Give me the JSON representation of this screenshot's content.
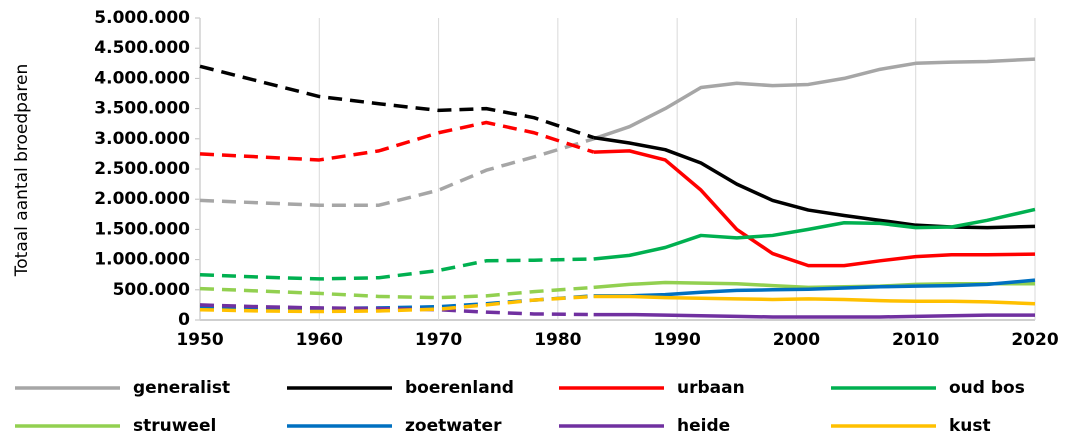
{
  "chart_data": {
    "type": "line",
    "ylabel": "Totaal aantal broedparen",
    "x": [
      1950,
      1955,
      1960,
      1965,
      1970,
      1974,
      1978,
      1983,
      1986,
      1989,
      1992,
      1995,
      1998,
      2001,
      2004,
      2007,
      2010,
      2013,
      2016,
      2020
    ],
    "dashed_until": 1983,
    "xlim": [
      1950,
      2020
    ],
    "xticks": [
      1950,
      1960,
      1970,
      1980,
      1990,
      2000,
      2010,
      2020
    ],
    "ylim": [
      0,
      5000000
    ],
    "yticks": [
      0,
      {
        "value": 500000,
        "label": "500.000"
      },
      {
        "value": 1000000,
        "label": "1.000.000"
      },
      {
        "value": 1500000,
        "label": "1.500.000"
      },
      {
        "value": 2000000,
        "label": "2.000.000"
      },
      {
        "value": 2500000,
        "label": "2.500.000"
      },
      {
        "value": 3000000,
        "label": "3.000.000"
      },
      {
        "value": 3500000,
        "label": "3.500.000"
      },
      {
        "value": 4000000,
        "label": "4.000.000"
      },
      {
        "value": 4500000,
        "label": "4.500.000"
      },
      {
        "value": 5000000,
        "label": "5.000.000"
      }
    ],
    "series": [
      {
        "name": "generalist",
        "color": "#a6a6a6",
        "values": [
          1980000,
          1940000,
          1900000,
          1900000,
          2150000,
          2480000,
          2700000,
          3000000,
          3200000,
          3500000,
          3850000,
          3920000,
          3880000,
          3900000,
          4000000,
          4150000,
          4250000,
          4270000,
          4280000,
          4320000
        ]
      },
      {
        "name": "boerenland",
        "color": "#000000",
        "values": [
          4200000,
          3950000,
          3700000,
          3580000,
          3470000,
          3500000,
          3350000,
          3020000,
          2930000,
          2820000,
          2600000,
          2250000,
          1980000,
          1820000,
          1730000,
          1650000,
          1570000,
          1540000,
          1530000,
          1550000
        ]
      },
      {
        "name": "urbaan",
        "color": "#ff0000",
        "values": [
          2750000,
          2700000,
          2650000,
          2800000,
          3100000,
          3270000,
          3100000,
          2780000,
          2800000,
          2650000,
          2150000,
          1500000,
          1100000,
          900000,
          900000,
          980000,
          1050000,
          1080000,
          1080000,
          1090000
        ]
      },
      {
        "name": "oud bos",
        "color": "#00b050",
        "values": [
          750000,
          710000,
          680000,
          700000,
          820000,
          980000,
          990000,
          1010000,
          1070000,
          1200000,
          1400000,
          1360000,
          1400000,
          1500000,
          1610000,
          1600000,
          1530000,
          1540000,
          1650000,
          1830000
        ]
      },
      {
        "name": "struweel",
        "color": "#92d050",
        "values": [
          520000,
          480000,
          440000,
          390000,
          370000,
          400000,
          470000,
          540000,
          590000,
          620000,
          610000,
          600000,
          570000,
          540000,
          550000,
          560000,
          590000,
          600000,
          600000,
          600000
        ]
      },
      {
        "name": "zoetwater",
        "color": "#0070c0",
        "values": [
          200000,
          190000,
          190000,
          200000,
          220000,
          270000,
          330000,
          400000,
          400000,
          420000,
          460000,
          490000,
          500000,
          510000,
          530000,
          550000,
          560000,
          570000,
          590000,
          660000
        ]
      },
      {
        "name": "heide",
        "color": "#7030a0",
        "values": [
          250000,
          220000,
          200000,
          190000,
          170000,
          130000,
          100000,
          90000,
          90000,
          80000,
          70000,
          60000,
          50000,
          50000,
          50000,
          50000,
          60000,
          70000,
          80000,
          80000
        ]
      },
      {
        "name": "kust",
        "color": "#ffc000",
        "values": [
          170000,
          150000,
          140000,
          150000,
          180000,
          250000,
          330000,
          390000,
          390000,
          370000,
          360000,
          350000,
          340000,
          350000,
          340000,
          320000,
          310000,
          310000,
          300000,
          270000
        ]
      }
    ]
  }
}
